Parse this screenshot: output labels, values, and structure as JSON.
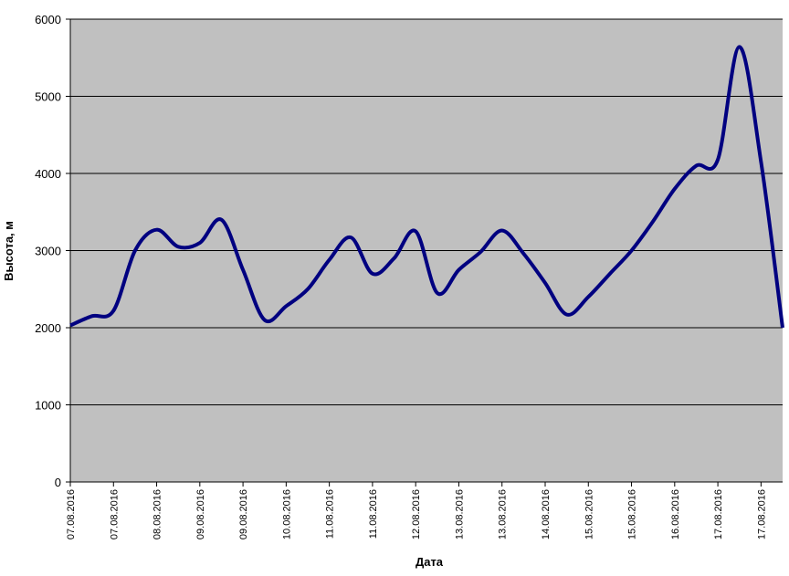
{
  "chart_data": {
    "type": "line",
    "x_label": "Дата",
    "y_label": "Высота, м",
    "categories": [
      "07.08.2016",
      null,
      "07.08.2016",
      null,
      "08.08.2016",
      null,
      "09.08.2016",
      null,
      "09.08.2016",
      null,
      "10.08.2016",
      null,
      "11.08.2016",
      null,
      "11.08.2016",
      null,
      "12.08.2016",
      null,
      "13.08.2016",
      null,
      "13.08.2016",
      null,
      "14.08.2016",
      null,
      "15.08.2016",
      null,
      "15.08.2016",
      null,
      "16.08.2016",
      null,
      "17.08.2016",
      null,
      "17.08.2016",
      null
    ],
    "values": [
      2030,
      2150,
      2220,
      3000,
      3270,
      3050,
      3100,
      3400,
      2750,
      2100,
      2280,
      2500,
      2880,
      3170,
      2700,
      2900,
      3250,
      2450,
      2750,
      2980,
      3260,
      2960,
      2580,
      2170,
      2400,
      2700,
      3000,
      3380,
      3800,
      4100,
      4180,
      5640,
      4150,
      2000
    ],
    "color": "#000080",
    "ylim": [
      0,
      6000
    ],
    "yticks": [
      0,
      1000,
      2000,
      3000,
      4000,
      5000,
      6000
    ],
    "grid": true
  }
}
